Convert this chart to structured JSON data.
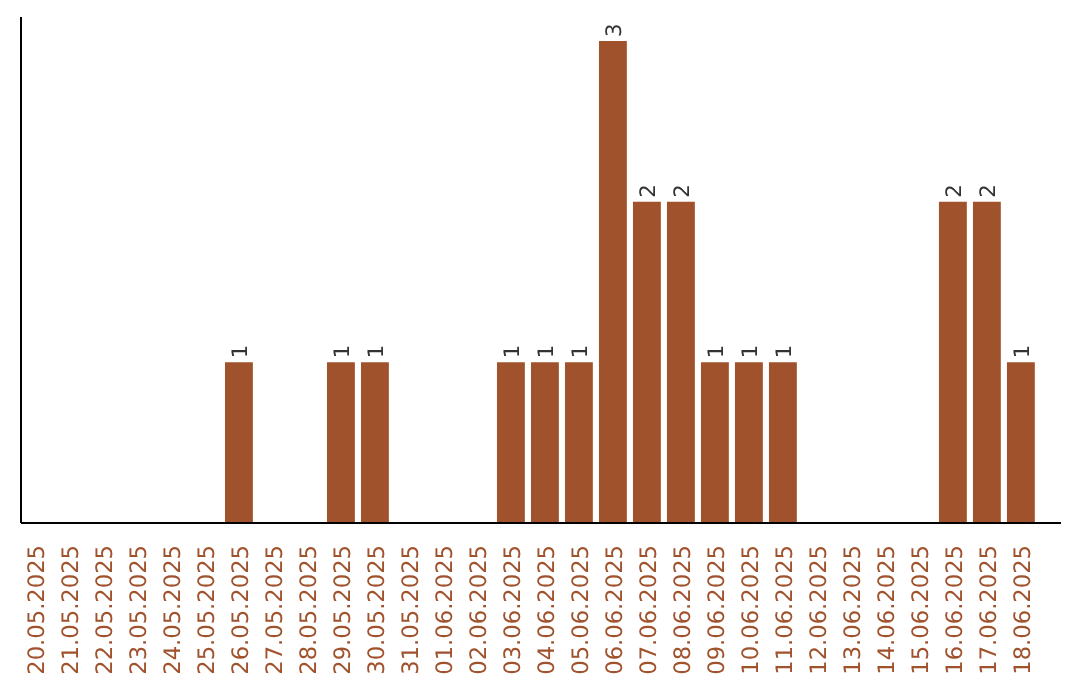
{
  "chart_data": {
    "type": "bar",
    "categories": [
      "20.05.2025",
      "21.05.2025",
      "22.05.2025",
      "23.05.2025",
      "24.05.2025",
      "25.05.2025",
      "26.05.2025",
      "27.05.2025",
      "28.05.2025",
      "29.05.2025",
      "30.05.2025",
      "31.05.2025",
      "01.06.2025",
      "02.06.2025",
      "03.06.2025",
      "04.06.2025",
      "05.06.2025",
      "06.06.2025",
      "07.06.2025",
      "08.06.2025",
      "09.06.2025",
      "10.06.2025",
      "11.06.2025",
      "12.06.2025",
      "13.06.2025",
      "14.06.2025",
      "15.06.2025",
      "16.06.2025",
      "17.06.2025",
      "18.06.2025"
    ],
    "values": [
      0,
      0,
      0,
      0,
      0,
      0,
      1,
      0,
      0,
      1,
      1,
      0,
      0,
      0,
      1,
      1,
      1,
      3,
      2,
      2,
      1,
      1,
      1,
      0,
      0,
      0,
      0,
      2,
      2,
      1
    ],
    "value_labels": [
      null,
      null,
      null,
      null,
      null,
      null,
      "1",
      null,
      null,
      "1",
      "1",
      null,
      null,
      null,
      "1",
      "1",
      "1",
      "3",
      "2",
      "2",
      "1",
      "1",
      "1",
      null,
      null,
      null,
      null,
      "2",
      "2",
      "1"
    ],
    "color": "#a0522d",
    "ylim": [
      0,
      3.15
    ],
    "tick_labels": "x",
    "grid": false
  }
}
